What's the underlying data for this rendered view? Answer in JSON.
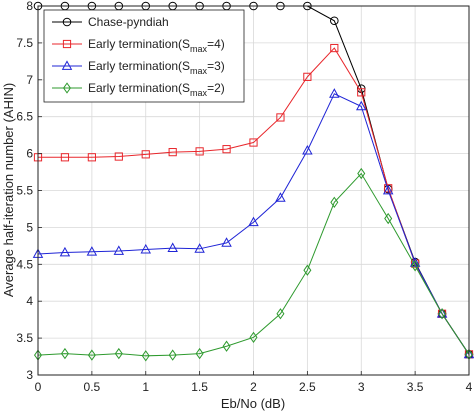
{
  "chart_data": {
    "type": "line",
    "title": "",
    "xlabel": "Eb/No (dB)",
    "ylabel": "Average half-iteration number (AHIN)",
    "xlim": [
      0,
      4
    ],
    "ylim": [
      3,
      8
    ],
    "xticks": [
      "0",
      "0.5",
      "1",
      "1.5",
      "2",
      "2.5",
      "3",
      "3.5",
      "4"
    ],
    "yticks": [
      "3",
      "3.5",
      "4",
      "4.5",
      "5",
      "5.5",
      "6",
      "6.5",
      "7",
      "7.5",
      "8"
    ],
    "grid": true,
    "legend_position": "top-left",
    "x": [
      0,
      0.25,
      0.5,
      0.75,
      1,
      1.25,
      1.5,
      1.75,
      2,
      2.25,
      2.5,
      2.75,
      3,
      3.25,
      3.5,
      3.75,
      4
    ],
    "series": [
      {
        "name": "Chase-pyndiah",
        "legend_main": "Chase-pyndiah",
        "legend_sub": "",
        "legend_post": "",
        "color": "#000000",
        "marker": "circle",
        "values": [
          8,
          8,
          8,
          8,
          8,
          8,
          8,
          8,
          8,
          8,
          8,
          7.8,
          6.88,
          5.52,
          4.53,
          3.83,
          3.28
        ]
      },
      {
        "name": "Early termination(Smax=4)",
        "legend_main": "Early termination(S",
        "legend_sub": "max",
        "legend_post": "=4)",
        "color": "#e8262b",
        "marker": "square",
        "values": [
          5.95,
          5.95,
          5.95,
          5.96,
          5.99,
          6.02,
          6.03,
          6.06,
          6.15,
          6.49,
          7.04,
          7.43,
          6.83,
          5.53,
          4.51,
          3.83,
          3.28
        ]
      },
      {
        "name": "Early termination(Smax=3)",
        "legend_main": "Early termination(S",
        "legend_sub": "max",
        "legend_post": "=3)",
        "color": "#1f24d6",
        "marker": "triangle",
        "values": [
          4.64,
          4.66,
          4.67,
          4.68,
          4.7,
          4.72,
          4.71,
          4.79,
          5.07,
          5.4,
          6.04,
          6.81,
          6.64,
          5.5,
          4.52,
          3.83,
          3.28
        ]
      },
      {
        "name": "Early termination(Smax=2)",
        "legend_main": "Early termination(S",
        "legend_sub": "max",
        "legend_post": "=2)",
        "color": "#2e9a2e",
        "marker": "diamond",
        "values": [
          3.27,
          3.29,
          3.27,
          3.29,
          3.26,
          3.27,
          3.29,
          3.39,
          3.51,
          3.83,
          4.42,
          5.34,
          5.73,
          5.12,
          4.48,
          3.83,
          3.28
        ]
      }
    ]
  }
}
